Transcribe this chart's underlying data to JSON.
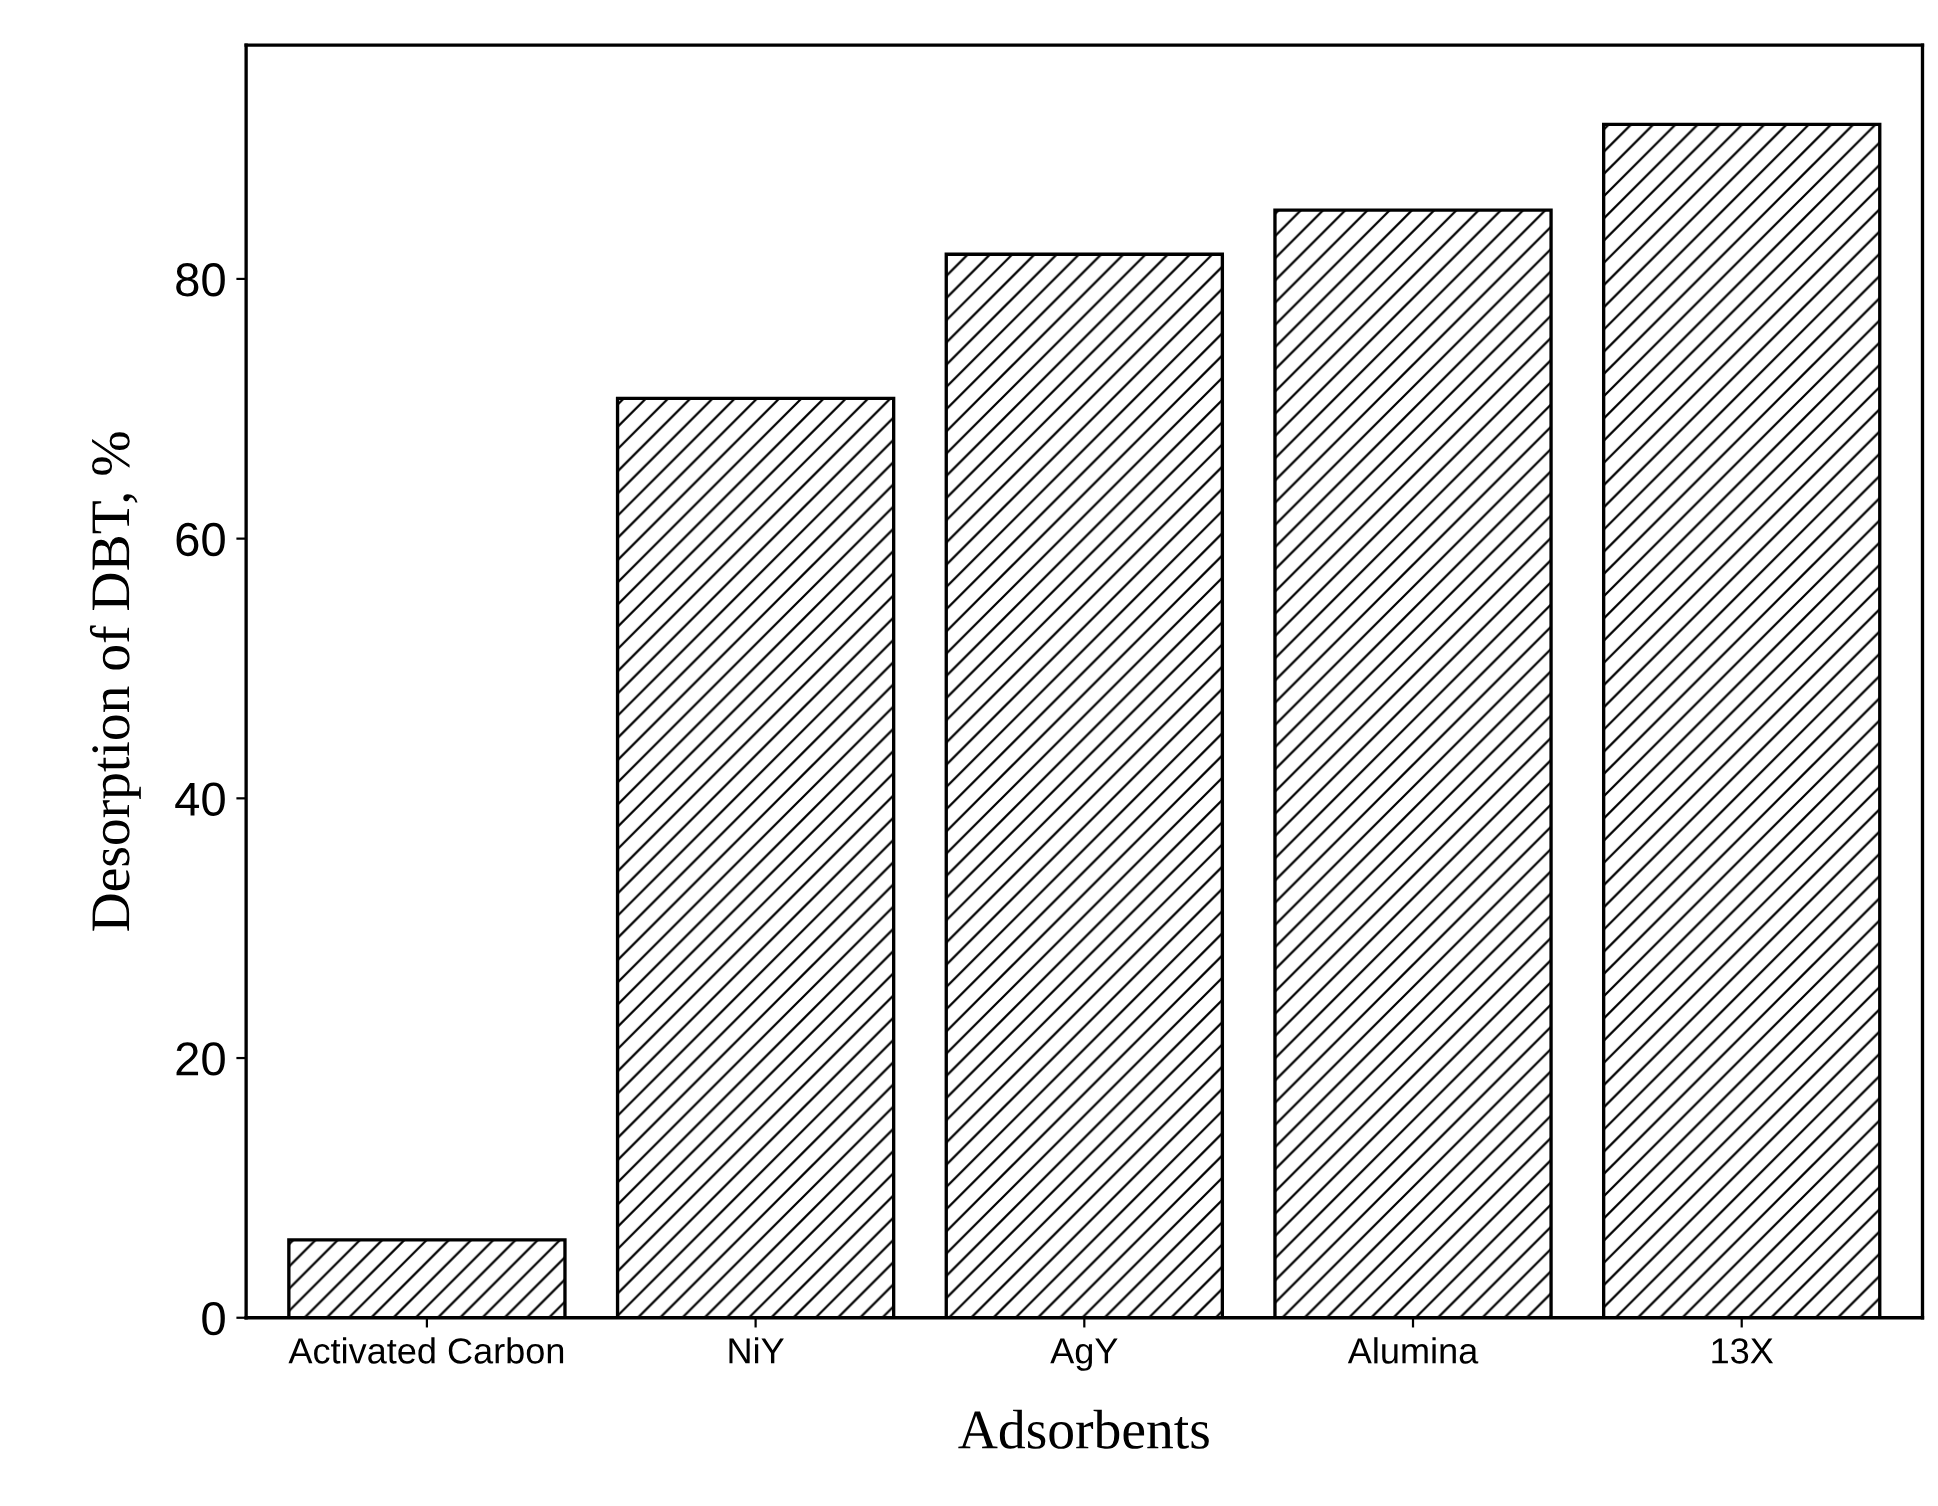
{
  "chart_data": {
    "type": "bar",
    "xlabel": "Adsorbents",
    "ylabel": "Desorption of DBT, %",
    "categories": [
      "Activated Carbon",
      "NiY",
      "AgY",
      "Alumina",
      "13X"
    ],
    "values": [
      6.0,
      70.8,
      81.9,
      85.3,
      91.9
    ],
    "color": "#000000",
    "ylim": [
      0,
      98
    ],
    "yticks": [
      0,
      20,
      40,
      60,
      80
    ],
    "grid": false
  }
}
